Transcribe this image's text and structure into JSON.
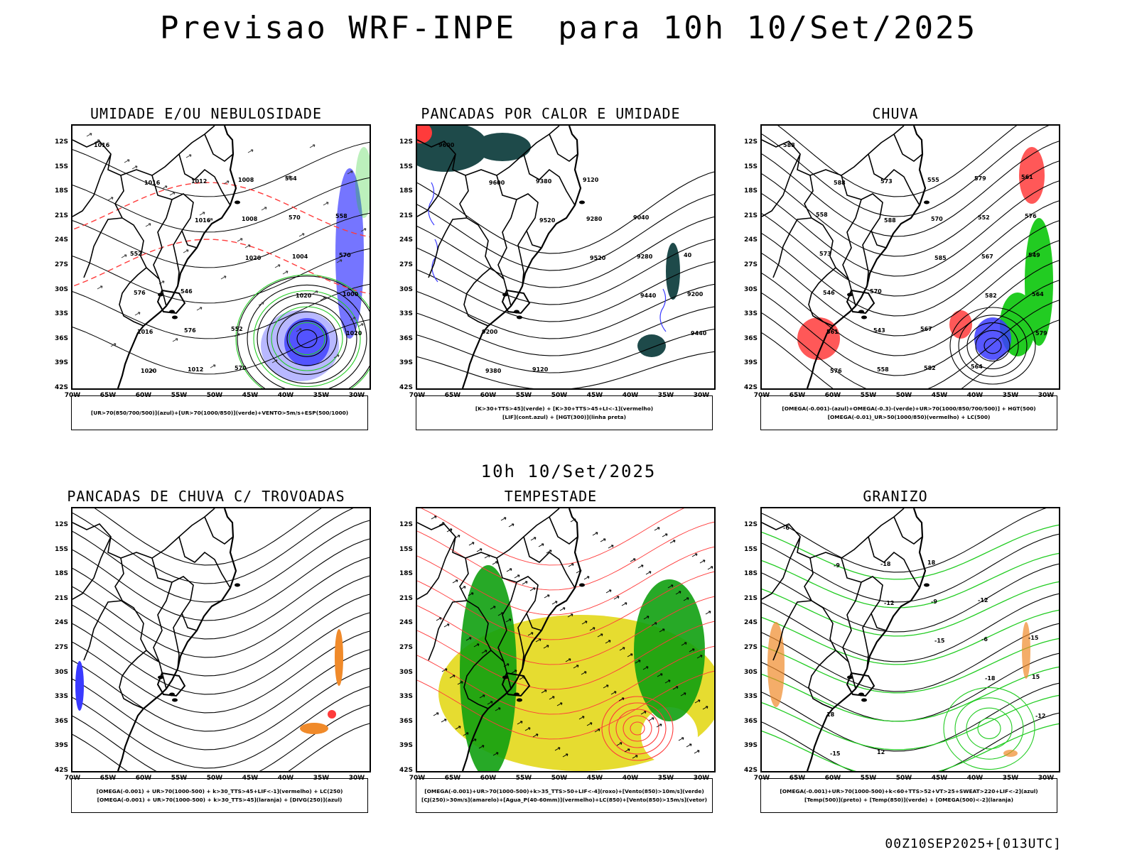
{
  "title": "Previsao WRF-INPE  para 10h 10/Set/2025",
  "subtitle": "10h 10/Set/2025",
  "footer": "00Z10SEP2025+[013UTC]",
  "lat_labels": [
    "12S",
    "15S",
    "18S",
    "21S",
    "24S",
    "27S",
    "30S",
    "33S",
    "36S",
    "39S",
    "42S"
  ],
  "lon_labels": [
    "70W",
    "65W",
    "60W",
    "55W",
    "50W",
    "45W",
    "40W",
    "35W",
    "30W"
  ],
  "colors": {
    "red": "#ff3b3b",
    "green": "#22cc22",
    "blue": "#3a3aff",
    "lightblue": "#b8b8ff",
    "teal": "#1e4a4a",
    "yellow": "#e6dc30",
    "darkgreen": "#10a010",
    "orange": "#f08a2a"
  },
  "panels": [
    {
      "id": "umidade",
      "title": "UMIDADE E/OU NEBULOSIDADE",
      "legend": [
        "[UR>70(850/700/500)](azul)+[UR>70(1000/850)](verde)+VENTO>5m/s+ESP(500/1000)"
      ],
      "contour_labels": [
        "1016",
        "1016",
        "1016",
        "1020",
        "1020",
        "1020",
        "1020",
        "1012",
        "1008",
        "1004",
        "1000",
        "1016",
        "1012",
        "1008",
        "570",
        "570",
        "576",
        "576",
        "570",
        "564",
        "558",
        "552",
        "546",
        "552"
      ]
    },
    {
      "id": "pancadas",
      "title": "PANCADAS POR CALOR E UMIDADE",
      "legend": [
        "[K>30+TTS>45](verde) + [K>30+TTS>45+LI<-1](vermelho)",
        "[LIF](cont.azul) + [HGT(300)](linha preta)"
      ],
      "contour_labels": [
        "9600",
        "9600",
        "9520",
        "9520",
        "9440",
        "9440",
        "9380",
        "9380",
        "9280",
        "9280",
        "9200",
        "9200",
        "9120",
        "9120",
        "9040",
        "40"
      ]
    },
    {
      "id": "chuva",
      "title": "CHUVA",
      "legend": [
        "[OMEGA(-0.001)-(azul)+OMEGA(-0.3)-(verde)+UR>70(1000/850/700/500)] + HGT(500)",
        "[OMEGA(-0.01)_UR>50(1000/850)(vermelho) + LC(500)"
      ],
      "contour_labels": [
        "588",
        "588",
        "588",
        "585",
        "582",
        "579",
        "576",
        "573",
        "570",
        "567",
        "564",
        "561",
        "558",
        "555",
        "552",
        "549",
        "546",
        "543",
        "582",
        "579",
        "576",
        "573",
        "570",
        "567",
        "564",
        "561",
        "558"
      ]
    },
    {
      "id": "trovoadas",
      "title": "PANCADAS DE CHUVA C/ TROVOADAS",
      "legend": [
        "[OMEGA(-0.001) + UR>70(1000-500) + k>30_TTS>45+LIF<-1](vermelho) + LC(250)",
        "[OMEGA(-0.001) + UR>70(1000-500) + k>30_TTS>45](laranja) + [DIVG(250)](azul)"
      ],
      "contour_labels": []
    },
    {
      "id": "tempestade",
      "title": "TEMPESTADE",
      "legend": [
        "[OMEGA(-0.001)+UR>70(1000-500)+k>35_TTS>50+LIF<-4](roxo)+[Vento(850)>10m/s](verde)",
        "[CJ(250)>30m/s](amarelo)+[Agua_P(40-60mm)](vermelho)+LC(850)+[Vento(850)>15m/s](vetor)"
      ],
      "contour_labels": []
    },
    {
      "id": "granizo",
      "title": "GRANIZO",
      "legend": [
        "[OMEGA(-0.001)+UR>70(1000-500)+k<60+TTS>52+VT>25+SWEAT>220+LIF<-2](azul)",
        "[Temp(500)](preto) + [Temp(850)](verde) + [OMEGA(500)<-2](laranja)"
      ],
      "contour_labels": [
        "-6",
        "-9",
        "-12",
        "-15",
        "-18",
        "-12",
        "-15",
        "-18",
        "-9",
        "-6",
        "15",
        "18",
        "12",
        "18",
        "-12",
        "-15"
      ]
    }
  ]
}
